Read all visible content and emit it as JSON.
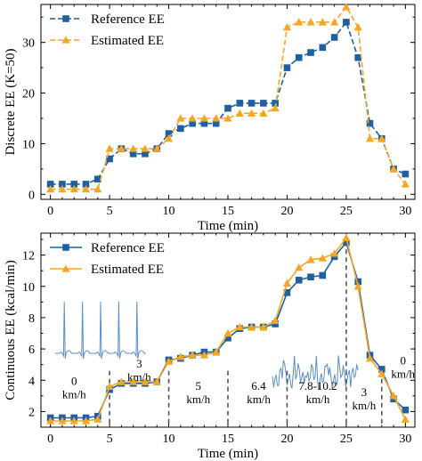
{
  "colors": {
    "reference": "#1f5fa3",
    "estimated": "#f5a623",
    "ecg": "#5b8fc7",
    "guide": "#555555"
  },
  "chart_data": [
    {
      "type": "line",
      "ylabel": "Discrete EE (K=50)",
      "xlabel": "Time (min)",
      "xlim": [
        -0.8,
        30.8
      ],
      "ylim": [
        -1,
        37.5
      ],
      "xticks": [
        0,
        5,
        10,
        15,
        20,
        25,
        30
      ],
      "yticks": [
        0,
        10,
        20,
        30
      ],
      "grid": false,
      "legend": "top-left",
      "line_style": "dashed",
      "x": [
        0,
        1,
        2,
        3,
        4,
        5,
        6,
        7,
        8,
        9,
        10,
        11,
        12,
        13,
        14,
        15,
        16,
        17,
        18,
        19,
        20,
        21,
        22,
        23,
        24,
        25,
        26,
        27,
        28,
        29,
        30
      ],
      "series": [
        {
          "name": "Reference EE",
          "marker": "square",
          "values": [
            2,
            2,
            2,
            2,
            3,
            7,
            9,
            8,
            8,
            9,
            12,
            13,
            14,
            14,
            14,
            17,
            18,
            18,
            18,
            18,
            25,
            27,
            28,
            29,
            31,
            34,
            27,
            14,
            11,
            5,
            4
          ]
        },
        {
          "name": "Estimated EE",
          "marker": "triangle",
          "values": [
            1,
            1,
            1,
            1,
            1,
            9,
            9,
            9,
            9,
            9,
            11,
            15,
            15,
            15,
            15,
            15,
            16,
            16,
            16,
            17,
            33,
            34,
            34,
            34,
            34,
            37,
            33,
            11,
            11,
            5,
            2
          ]
        }
      ]
    },
    {
      "type": "line",
      "ylabel": "Continuous EE (kcal/min)",
      "xlabel": "Time (min)",
      "xlim": [
        -0.8,
        30.8
      ],
      "ylim": [
        1,
        13.4
      ],
      "xticks": [
        0,
        5,
        10,
        15,
        20,
        25,
        30
      ],
      "yticks": [
        2,
        4,
        6,
        8,
        10,
        12
      ],
      "grid": false,
      "legend": "top-left",
      "line_style": "solid",
      "x": [
        0,
        1,
        2,
        3,
        4,
        5,
        6,
        7,
        8,
        9,
        10,
        11,
        12,
        13,
        14,
        15,
        16,
        17,
        18,
        19,
        20,
        21,
        22,
        23,
        24,
        25,
        26,
        27,
        28,
        29,
        30
      ],
      "series": [
        {
          "name": "Reference EE",
          "marker": "square",
          "values": [
            1.6,
            1.6,
            1.6,
            1.6,
            1.7,
            3.4,
            3.8,
            3.8,
            3.8,
            3.9,
            5.3,
            5.4,
            5.6,
            5.8,
            5.8,
            6.7,
            7.3,
            7.4,
            7.4,
            7.6,
            9.6,
            10.4,
            10.6,
            10.7,
            11.9,
            12.8,
            10.3,
            5.6,
            4.7,
            2.8,
            2.1
          ]
        },
        {
          "name": "Estimated EE",
          "marker": "triangle",
          "values": [
            1.4,
            1.4,
            1.4,
            1.4,
            1.5,
            3.6,
            3.9,
            3.9,
            3.9,
            3.9,
            5.2,
            5.5,
            5.6,
            5.6,
            5.8,
            7.0,
            7.4,
            7.4,
            7.4,
            7.8,
            10.2,
            11.2,
            11.7,
            11.8,
            12.1,
            13.1,
            10.0,
            5.4,
            4.4,
            3.0,
            1.5
          ]
        }
      ],
      "segment_dividers": [
        5,
        10,
        15,
        20,
        25,
        28
      ],
      "annotations": [
        {
          "lines": [
            "0",
            "km/h"
          ],
          "x": 2.0,
          "y": 3.7
        },
        {
          "lines": [
            "3",
            "km/h"
          ],
          "x": 7.5,
          "y": 4.8
        },
        {
          "lines": [
            "5",
            "km/h"
          ],
          "x": 12.5,
          "y": 3.4
        },
        {
          "lines": [
            "6.4",
            "km/h"
          ],
          "x": 17.6,
          "y": 3.4
        },
        {
          "lines": [
            "7.8-10.2",
            "km/h"
          ],
          "x": 22.6,
          "y": 3.4
        },
        {
          "lines": [
            "3",
            "km/h"
          ],
          "x": 26.5,
          "y": 3.0
        },
        {
          "lines": [
            "0",
            "km/h"
          ],
          "x": 29.8,
          "y": 5.0
        }
      ]
    }
  ]
}
